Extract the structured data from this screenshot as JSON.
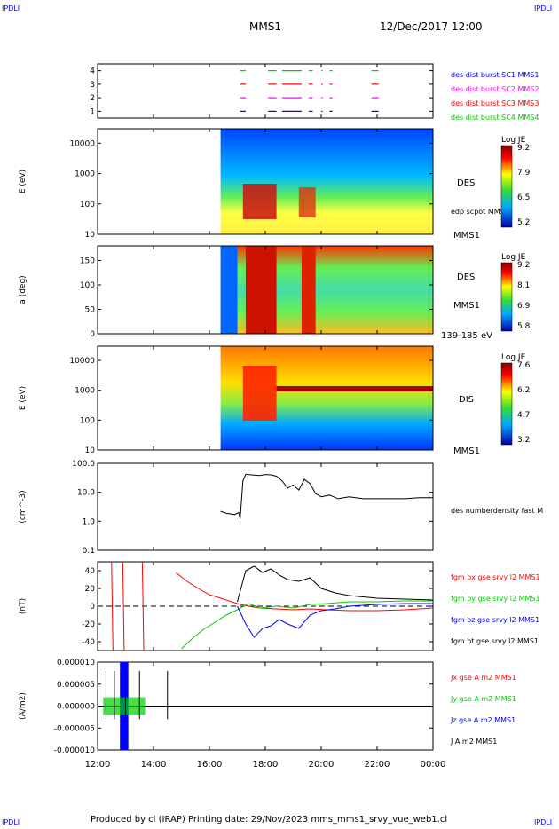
{
  "corners": {
    "tl": "IPDLI",
    "tr": "IPDLI",
    "bl": "IPDLI",
    "br": "IPDLI"
  },
  "header": {
    "spacecraft": "MMS1",
    "date": "12/Dec/2017 12:00"
  },
  "footer": {
    "credit": "Produced by cl (IRAP)   Printing date: 29/Nov/2023   mms_mms1_srvy_vue_web1.cl"
  },
  "time_axis": {
    "ticks": [
      "12:00",
      "14:00",
      "16:00",
      "18:00",
      "20:00",
      "22:00",
      "00:00"
    ],
    "start_hour": 12,
    "end_hour": 24
  },
  "colors": {
    "blue": "#0000ff",
    "magenta": "#ff00ff",
    "red": "#ff0000",
    "green": "#00cc00",
    "black": "#000000"
  },
  "chart_data": [
    {
      "type": "scatter",
      "name": "burst availability",
      "y_ticks": [
        "1",
        "2",
        "3",
        "4"
      ],
      "ylim": [
        0.5,
        4.5
      ],
      "legend": [
        {
          "label": "des dist burst SC1 MMS1",
          "color": "#0000ff"
        },
        {
          "label": "des dist burst SC2 MMS2",
          "color": "#ff00ff"
        },
        {
          "label": "des dist burst SC3 MMS3",
          "color": "#ff0000"
        },
        {
          "label": "des dist burst SC4 MMS4",
          "color": "#00cc00"
        }
      ],
      "intervals_hours": [
        [
          17.1,
          17.3
        ],
        [
          18.1,
          18.4
        ],
        [
          18.6,
          19.3
        ],
        [
          19.55,
          19.7
        ],
        [
          20.0,
          20.05
        ],
        [
          20.3,
          20.4
        ],
        [
          21.8,
          22.05
        ]
      ]
    },
    {
      "type": "heatmap",
      "ylabel": "E (eV)",
      "y_ticks": [
        "10",
        "100",
        "1000",
        "10000"
      ],
      "ylim": [
        10,
        30000
      ],
      "log_y": true,
      "label_right": "DES",
      "label_mid": "edp scpot MMS1",
      "label_bottom": "MMS1",
      "colorbar": {
        "title": "Log JE",
        "ticks": [
          "9.2",
          "7.9",
          "6.5",
          "5.2"
        ]
      },
      "data_start_hour": 16.4
    },
    {
      "type": "heatmap",
      "ylabel": "a (deg)",
      "y_ticks": [
        "0",
        "50",
        "100",
        "150"
      ],
      "ylim": [
        0,
        180
      ],
      "label_right": "DES",
      "label_mid": "MMS1",
      "label_bottom": "139-185 eV",
      "colorbar": {
        "title": "Log JE",
        "ticks": [
          "9.2",
          "8.1",
          "6.9",
          "5.8"
        ]
      },
      "data_start_hour": 16.4
    },
    {
      "type": "heatmap",
      "ylabel": "E (eV)",
      "y_ticks": [
        "10",
        "100",
        "1000",
        "10000"
      ],
      "ylim": [
        10,
        30000
      ],
      "log_y": true,
      "label_right": "DIS",
      "label_bottom": "MMS1",
      "colorbar": {
        "title": "Log JE",
        "ticks": [
          "7.6",
          "6.2",
          "4.7",
          "3.2"
        ]
      },
      "data_start_hour": 16.4
    },
    {
      "type": "line",
      "ylabel": "(cm^-3)",
      "y_ticks": [
        "0.1",
        "1.0",
        "10.0",
        "100.0"
      ],
      "ylim": [
        0.1,
        100
      ],
      "log_y": true,
      "series": [
        {
          "name": "des numberdensity fast M",
          "color": "#000000",
          "x": [
            16.4,
            16.6,
            16.9,
            17.05,
            17.1,
            17.2,
            17.3,
            17.5,
            17.8,
            18.0,
            18.2,
            18.4,
            18.6,
            18.8,
            19.0,
            19.2,
            19.4,
            19.6,
            19.8,
            20.0,
            20.3,
            20.6,
            21.0,
            21.5,
            22.0,
            22.5,
            23.0,
            23.5,
            24.0
          ],
          "y": [
            2.2,
            1.9,
            1.7,
            2.0,
            1.2,
            25,
            42,
            40,
            38,
            41,
            40,
            36,
            25,
            14,
            18,
            12,
            28,
            20,
            9,
            7,
            8,
            6,
            7,
            6,
            6,
            6,
            6,
            6.5,
            6.5
          ]
        }
      ]
    },
    {
      "type": "line",
      "ylabel": "(nT)",
      "y_ticks": [
        "-40",
        "-20",
        "0",
        "20",
        "40"
      ],
      "ylim": [
        -50,
        50
      ],
      "series": [
        {
          "name": "fgm bx gse srvy l2 MMS1",
          "color": "#ff0000",
          "x": [
            14.8,
            15.2,
            15.6,
            16.0,
            16.4,
            16.8,
            17.1,
            17.4,
            17.8,
            18.4,
            19.0,
            19.6,
            20.2,
            21.0,
            22.0,
            23.0,
            24.0
          ],
          "y": [
            38,
            28,
            20,
            13,
            9,
            5,
            2,
            0,
            -2,
            -3,
            -4,
            -3,
            -4,
            -5,
            -5,
            -4,
            -2
          ]
        },
        {
          "name": "fgm by gse srvy l2 MMS1",
          "color": "#00cc00",
          "x": [
            15.0,
            15.4,
            15.8,
            16.2,
            16.6,
            17.0,
            17.4,
            17.8,
            18.4,
            19.0,
            19.6,
            20.2,
            21.0,
            22.0,
            23.0,
            24.0
          ],
          "y": [
            -48,
            -36,
            -26,
            -18,
            -10,
            -4,
            3,
            -2,
            0,
            -2,
            2,
            3,
            5,
            5,
            6,
            6
          ]
        },
        {
          "name": "fgm bz gse srvy l2 MMS1",
          "color": "#0000ff",
          "x": [
            17.0,
            17.3,
            17.6,
            17.9,
            18.2,
            18.5,
            18.8,
            19.2,
            19.6,
            20.0,
            20.5,
            21.0,
            22.0,
            23.0,
            24.0
          ],
          "y": [
            0,
            -20,
            -35,
            -25,
            -22,
            -15,
            -20,
            -25,
            -10,
            -5,
            -3,
            0,
            2,
            3,
            3
          ]
        },
        {
          "name": "fgm bt gse srvy l2 MMS1",
          "color": "#000000",
          "x": [
            17.0,
            17.3,
            17.6,
            17.9,
            18.2,
            18.5,
            18.8,
            19.2,
            19.6,
            20.0,
            20.5,
            21.0,
            22.0,
            23.0,
            24.0
          ],
          "y": [
            5,
            40,
            45,
            38,
            42,
            35,
            30,
            28,
            32,
            20,
            15,
            12,
            9,
            8,
            7
          ]
        }
      ]
    },
    {
      "type": "line",
      "ylabel": "(A/m2)",
      "y_ticks": [
        "-0.000010",
        "-0.000005",
        "0.000000",
        "0.000005",
        "0.000010"
      ],
      "ylim": [
        -1e-05,
        1e-05
      ],
      "series": [
        {
          "name": "Jx gse A m2 MMS1",
          "color": "#ff0000"
        },
        {
          "name": "Jy gse A m2 MMS1",
          "color": "#00cc00"
        },
        {
          "name": "Jz gse A m2 MMS1",
          "color": "#0000ff"
        },
        {
          "name": "J A m2 MMS1",
          "color": "#000000"
        }
      ]
    }
  ]
}
